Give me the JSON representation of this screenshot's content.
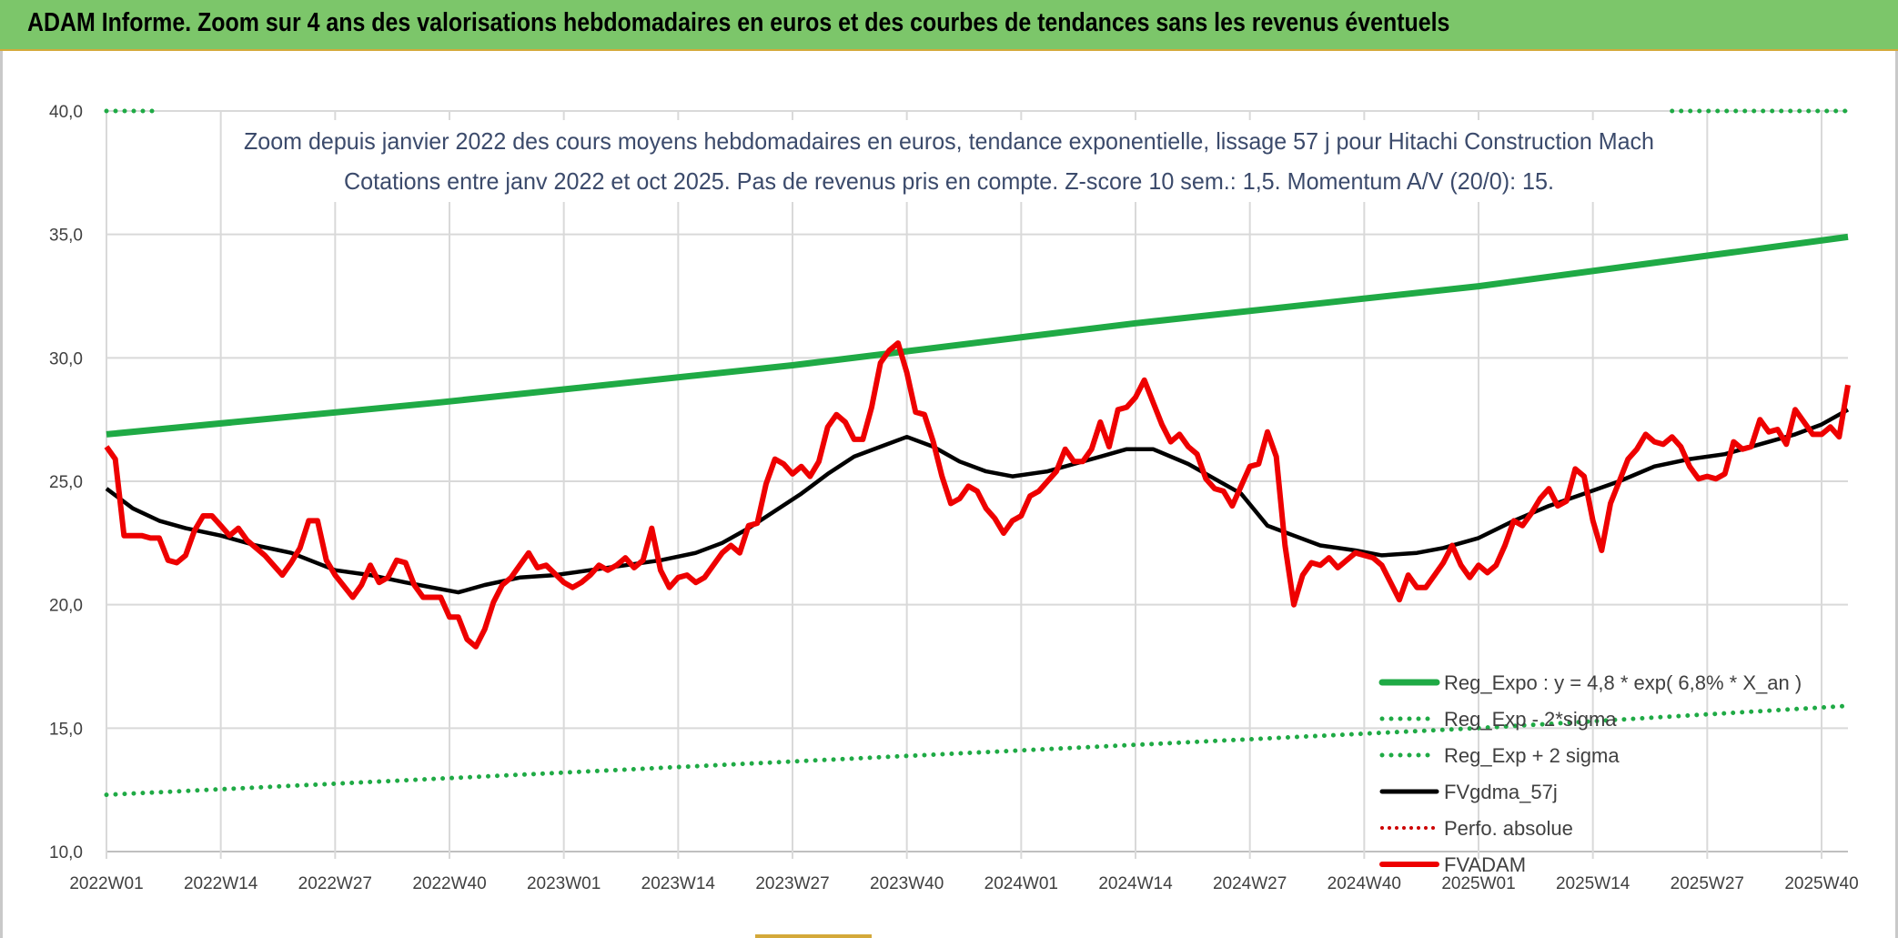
{
  "header": {
    "title": "ADAM Informe. Zoom sur 4 ans des valorisations hebdomadaires en euros et des courbes de tendances sans les revenus éventuels"
  },
  "colors": {
    "header_bg": "#7cc66a",
    "trend": "#1faa45",
    "fvgdma": "#000000",
    "fvadam": "#ee0000",
    "perfo": "#cc0000",
    "grid": "#d9d9d9",
    "title_text": "#3b4a6b"
  },
  "chart_data": {
    "type": "line",
    "title_line1": "Zoom depuis janvier 2022 des cours moyens hebdomadaires en euros, tendance exponentielle, lissage 57 j pour Hitachi Construction Mach",
    "title_line2": "Cotations entre janv 2022 et oct 2025. Pas de revenus pris en compte. Z-score 10 sem.: 1,5. Momentum A/V (20/0): 15.",
    "x_tick_labels": [
      "2022W01",
      "2022W14",
      "2022W27",
      "2022W40",
      "2023W01",
      "2023W14",
      "2023W27",
      "2023W40",
      "2024W01",
      "2024W14",
      "2024W27",
      "2024W40",
      "2025W01",
      "2025W14",
      "2025W27",
      "2025W40"
    ],
    "x_tick_week_index": [
      0,
      13,
      26,
      39,
      52,
      65,
      78,
      91,
      104,
      117,
      130,
      143,
      156,
      169,
      182,
      195
    ],
    "x_range": [
      0,
      198
    ],
    "y_ticks": [
      "10,0",
      "15,0",
      "20,0",
      "25,0",
      "30,0",
      "35,0",
      "40,0"
    ],
    "y_tick_values": [
      10,
      15,
      20,
      25,
      30,
      35,
      40
    ],
    "ylim": [
      10,
      40
    ],
    "legend_position": "bottom-right",
    "series": [
      {
        "name": "Reg_Expo : y = 4,8 * exp( 6,8% *  X_an )",
        "style": "solid",
        "color": "#1faa45",
        "points": [
          [
            0,
            26.9
          ],
          [
            38,
            28.2
          ],
          [
            78,
            29.7
          ],
          [
            117,
            31.4
          ],
          [
            156,
            32.9
          ],
          [
            198,
            34.9
          ]
        ]
      },
      {
        "name": "Reg_Exp - 2*sigma",
        "style": "dotted",
        "color": "#1faa45",
        "points": [
          [
            0,
            40.0
          ],
          [
            6,
            40.0
          ]
        ],
        "points_b": [
          [
            178,
            40.0
          ],
          [
            198,
            40.0
          ]
        ]
      },
      {
        "name": "Reg_Exp + 2 sigma",
        "style": "dotted",
        "color": "#1faa45",
        "points": [
          [
            0,
            12.3
          ],
          [
            52,
            13.2
          ],
          [
            104,
            14.1
          ],
          [
            156,
            15.0
          ],
          [
            198,
            15.9
          ]
        ]
      },
      {
        "name": "FVgdma_57j",
        "style": "solid",
        "color": "#000000",
        "points": [
          [
            0,
            24.7
          ],
          [
            3,
            23.9
          ],
          [
            6,
            23.4
          ],
          [
            9,
            23.1
          ],
          [
            13,
            22.8
          ],
          [
            17,
            22.4
          ],
          [
            21,
            22.1
          ],
          [
            26,
            21.4
          ],
          [
            30,
            21.2
          ],
          [
            34,
            20.9
          ],
          [
            37,
            20.7
          ],
          [
            40,
            20.5
          ],
          [
            43,
            20.8
          ],
          [
            47,
            21.1
          ],
          [
            51,
            21.2
          ],
          [
            55,
            21.4
          ],
          [
            59,
            21.6
          ],
          [
            63,
            21.8
          ],
          [
            67,
            22.1
          ],
          [
            70,
            22.5
          ],
          [
            73,
            23.1
          ],
          [
            76,
            23.8
          ],
          [
            79,
            24.5
          ],
          [
            82,
            25.3
          ],
          [
            85,
            26.0
          ],
          [
            88,
            26.4
          ],
          [
            91,
            26.8
          ],
          [
            94,
            26.4
          ],
          [
            97,
            25.8
          ],
          [
            100,
            25.4
          ],
          [
            103,
            25.2
          ],
          [
            107,
            25.4
          ],
          [
            110,
            25.7
          ],
          [
            113,
            26.0
          ],
          [
            116,
            26.3
          ],
          [
            119,
            26.3
          ],
          [
            123,
            25.7
          ],
          [
            126,
            25.1
          ],
          [
            129,
            24.5
          ],
          [
            132,
            23.2
          ],
          [
            135,
            22.8
          ],
          [
            138,
            22.4
          ],
          [
            142,
            22.2
          ],
          [
            145,
            22.0
          ],
          [
            149,
            22.1
          ],
          [
            152,
            22.3
          ],
          [
            156,
            22.7
          ],
          [
            160,
            23.4
          ],
          [
            164,
            24.0
          ],
          [
            168,
            24.5
          ],
          [
            172,
            25.0
          ],
          [
            176,
            25.6
          ],
          [
            180,
            25.9
          ],
          [
            184,
            26.1
          ],
          [
            188,
            26.5
          ],
          [
            192,
            26.9
          ],
          [
            195,
            27.3
          ],
          [
            198,
            27.9
          ]
        ]
      },
      {
        "name": "Perfo. absolue",
        "style": "dotted",
        "color": "#cc0000",
        "points": []
      },
      {
        "name": "FVADAM",
        "style": "solid",
        "color": "#ee0000",
        "points": [
          [
            0,
            26.4
          ],
          [
            1,
            25.9
          ],
          [
            2,
            22.8
          ],
          [
            4,
            22.8
          ],
          [
            5,
            22.7
          ],
          [
            6,
            22.7
          ],
          [
            7,
            21.8
          ],
          [
            8,
            21.7
          ],
          [
            9,
            22.0
          ],
          [
            10,
            23.0
          ],
          [
            11,
            23.6
          ],
          [
            12,
            23.6
          ],
          [
            13,
            23.2
          ],
          [
            14,
            22.8
          ],
          [
            15,
            23.1
          ],
          [
            16,
            22.6
          ],
          [
            18,
            22.0
          ],
          [
            20,
            21.2
          ],
          [
            21,
            21.7
          ],
          [
            22,
            22.3
          ],
          [
            23,
            23.4
          ],
          [
            24,
            23.4
          ],
          [
            25,
            21.8
          ],
          [
            26,
            21.2
          ],
          [
            28,
            20.3
          ],
          [
            29,
            20.8
          ],
          [
            30,
            21.6
          ],
          [
            31,
            20.9
          ],
          [
            32,
            21.1
          ],
          [
            33,
            21.8
          ],
          [
            34,
            21.7
          ],
          [
            35,
            20.8
          ],
          [
            36,
            20.3
          ],
          [
            38,
            20.3
          ],
          [
            39,
            19.5
          ],
          [
            40,
            19.5
          ],
          [
            41,
            18.6
          ],
          [
            42,
            18.3
          ],
          [
            43,
            19.0
          ],
          [
            44,
            20.1
          ],
          [
            45,
            20.8
          ],
          [
            46,
            21.1
          ],
          [
            47,
            21.6
          ],
          [
            48,
            22.1
          ],
          [
            49,
            21.5
          ],
          [
            50,
            21.6
          ],
          [
            52,
            20.9
          ],
          [
            53,
            20.7
          ],
          [
            54,
            20.9
          ],
          [
            55,
            21.2
          ],
          [
            56,
            21.6
          ],
          [
            57,
            21.4
          ],
          [
            58,
            21.6
          ],
          [
            59,
            21.9
          ],
          [
            60,
            21.5
          ],
          [
            61,
            21.8
          ],
          [
            62,
            23.1
          ],
          [
            63,
            21.4
          ],
          [
            64,
            20.7
          ],
          [
            65,
            21.1
          ],
          [
            66,
            21.2
          ],
          [
            67,
            20.9
          ],
          [
            68,
            21.1
          ],
          [
            69,
            21.6
          ],
          [
            70,
            22.1
          ],
          [
            71,
            22.4
          ],
          [
            72,
            22.1
          ],
          [
            73,
            23.2
          ],
          [
            74,
            23.3
          ],
          [
            75,
            24.9
          ],
          [
            76,
            25.9
          ],
          [
            77,
            25.7
          ],
          [
            78,
            25.3
          ],
          [
            79,
            25.6
          ],
          [
            80,
            25.2
          ],
          [
            81,
            25.8
          ],
          [
            82,
            27.2
          ],
          [
            83,
            27.7
          ],
          [
            84,
            27.4
          ],
          [
            85,
            26.7
          ],
          [
            86,
            26.7
          ],
          [
            87,
            28.0
          ],
          [
            88,
            29.8
          ],
          [
            89,
            30.3
          ],
          [
            90,
            30.6
          ],
          [
            91,
            29.4
          ],
          [
            92,
            27.8
          ],
          [
            93,
            27.7
          ],
          [
            94,
            26.6
          ],
          [
            95,
            25.2
          ],
          [
            96,
            24.1
          ],
          [
            97,
            24.3
          ],
          [
            98,
            24.8
          ],
          [
            99,
            24.6
          ],
          [
            100,
            23.9
          ],
          [
            101,
            23.5
          ],
          [
            102,
            22.9
          ],
          [
            103,
            23.4
          ],
          [
            104,
            23.6
          ],
          [
            105,
            24.4
          ],
          [
            106,
            24.6
          ],
          [
            107,
            25.0
          ],
          [
            108,
            25.4
          ],
          [
            109,
            26.3
          ],
          [
            110,
            25.8
          ],
          [
            111,
            25.8
          ],
          [
            112,
            26.3
          ],
          [
            113,
            27.4
          ],
          [
            114,
            26.4
          ],
          [
            115,
            27.9
          ],
          [
            116,
            28.0
          ],
          [
            117,
            28.4
          ],
          [
            118,
            29.1
          ],
          [
            119,
            28.2
          ],
          [
            120,
            27.3
          ],
          [
            121,
            26.6
          ],
          [
            122,
            26.9
          ],
          [
            123,
            26.4
          ],
          [
            124,
            26.1
          ],
          [
            125,
            25.1
          ],
          [
            126,
            24.7
          ],
          [
            127,
            24.6
          ],
          [
            128,
            24.0
          ],
          [
            129,
            24.8
          ],
          [
            130,
            25.6
          ],
          [
            131,
            25.7
          ],
          [
            132,
            27.0
          ],
          [
            133,
            26.0
          ],
          [
            134,
            22.4
          ],
          [
            135,
            20.0
          ],
          [
            136,
            21.2
          ],
          [
            137,
            21.7
          ],
          [
            138,
            21.6
          ],
          [
            139,
            21.9
          ],
          [
            140,
            21.5
          ],
          [
            141,
            21.8
          ],
          [
            142,
            22.1
          ],
          [
            143,
            22.0
          ],
          [
            144,
            21.9
          ],
          [
            145,
            21.6
          ],
          [
            146,
            20.9
          ],
          [
            147,
            20.2
          ],
          [
            148,
            21.2
          ],
          [
            149,
            20.7
          ],
          [
            150,
            20.7
          ],
          [
            151,
            21.2
          ],
          [
            152,
            21.7
          ],
          [
            153,
            22.4
          ],
          [
            154,
            21.6
          ],
          [
            155,
            21.1
          ],
          [
            156,
            21.6
          ],
          [
            157,
            21.3
          ],
          [
            158,
            21.6
          ],
          [
            159,
            22.4
          ],
          [
            160,
            23.4
          ],
          [
            161,
            23.2
          ],
          [
            162,
            23.7
          ],
          [
            163,
            24.3
          ],
          [
            164,
            24.7
          ],
          [
            165,
            24.0
          ],
          [
            166,
            24.2
          ],
          [
            167,
            25.5
          ],
          [
            168,
            25.2
          ],
          [
            169,
            23.4
          ],
          [
            170,
            22.2
          ],
          [
            171,
            24.1
          ],
          [
            172,
            25.0
          ],
          [
            173,
            25.9
          ],
          [
            174,
            26.3
          ],
          [
            175,
            26.9
          ],
          [
            176,
            26.6
          ],
          [
            177,
            26.5
          ],
          [
            178,
            26.8
          ],
          [
            179,
            26.4
          ],
          [
            180,
            25.6
          ],
          [
            181,
            25.1
          ],
          [
            182,
            25.2
          ],
          [
            183,
            25.1
          ],
          [
            184,
            25.3
          ],
          [
            185,
            26.6
          ],
          [
            186,
            26.3
          ],
          [
            187,
            26.4
          ],
          [
            188,
            27.5
          ],
          [
            189,
            27.0
          ],
          [
            190,
            27.1
          ],
          [
            191,
            26.5
          ],
          [
            192,
            27.9
          ],
          [
            193,
            27.4
          ],
          [
            194,
            26.9
          ],
          [
            195,
            26.9
          ],
          [
            196,
            27.2
          ],
          [
            197,
            26.8
          ],
          [
            198,
            28.9
          ]
        ]
      }
    ]
  }
}
